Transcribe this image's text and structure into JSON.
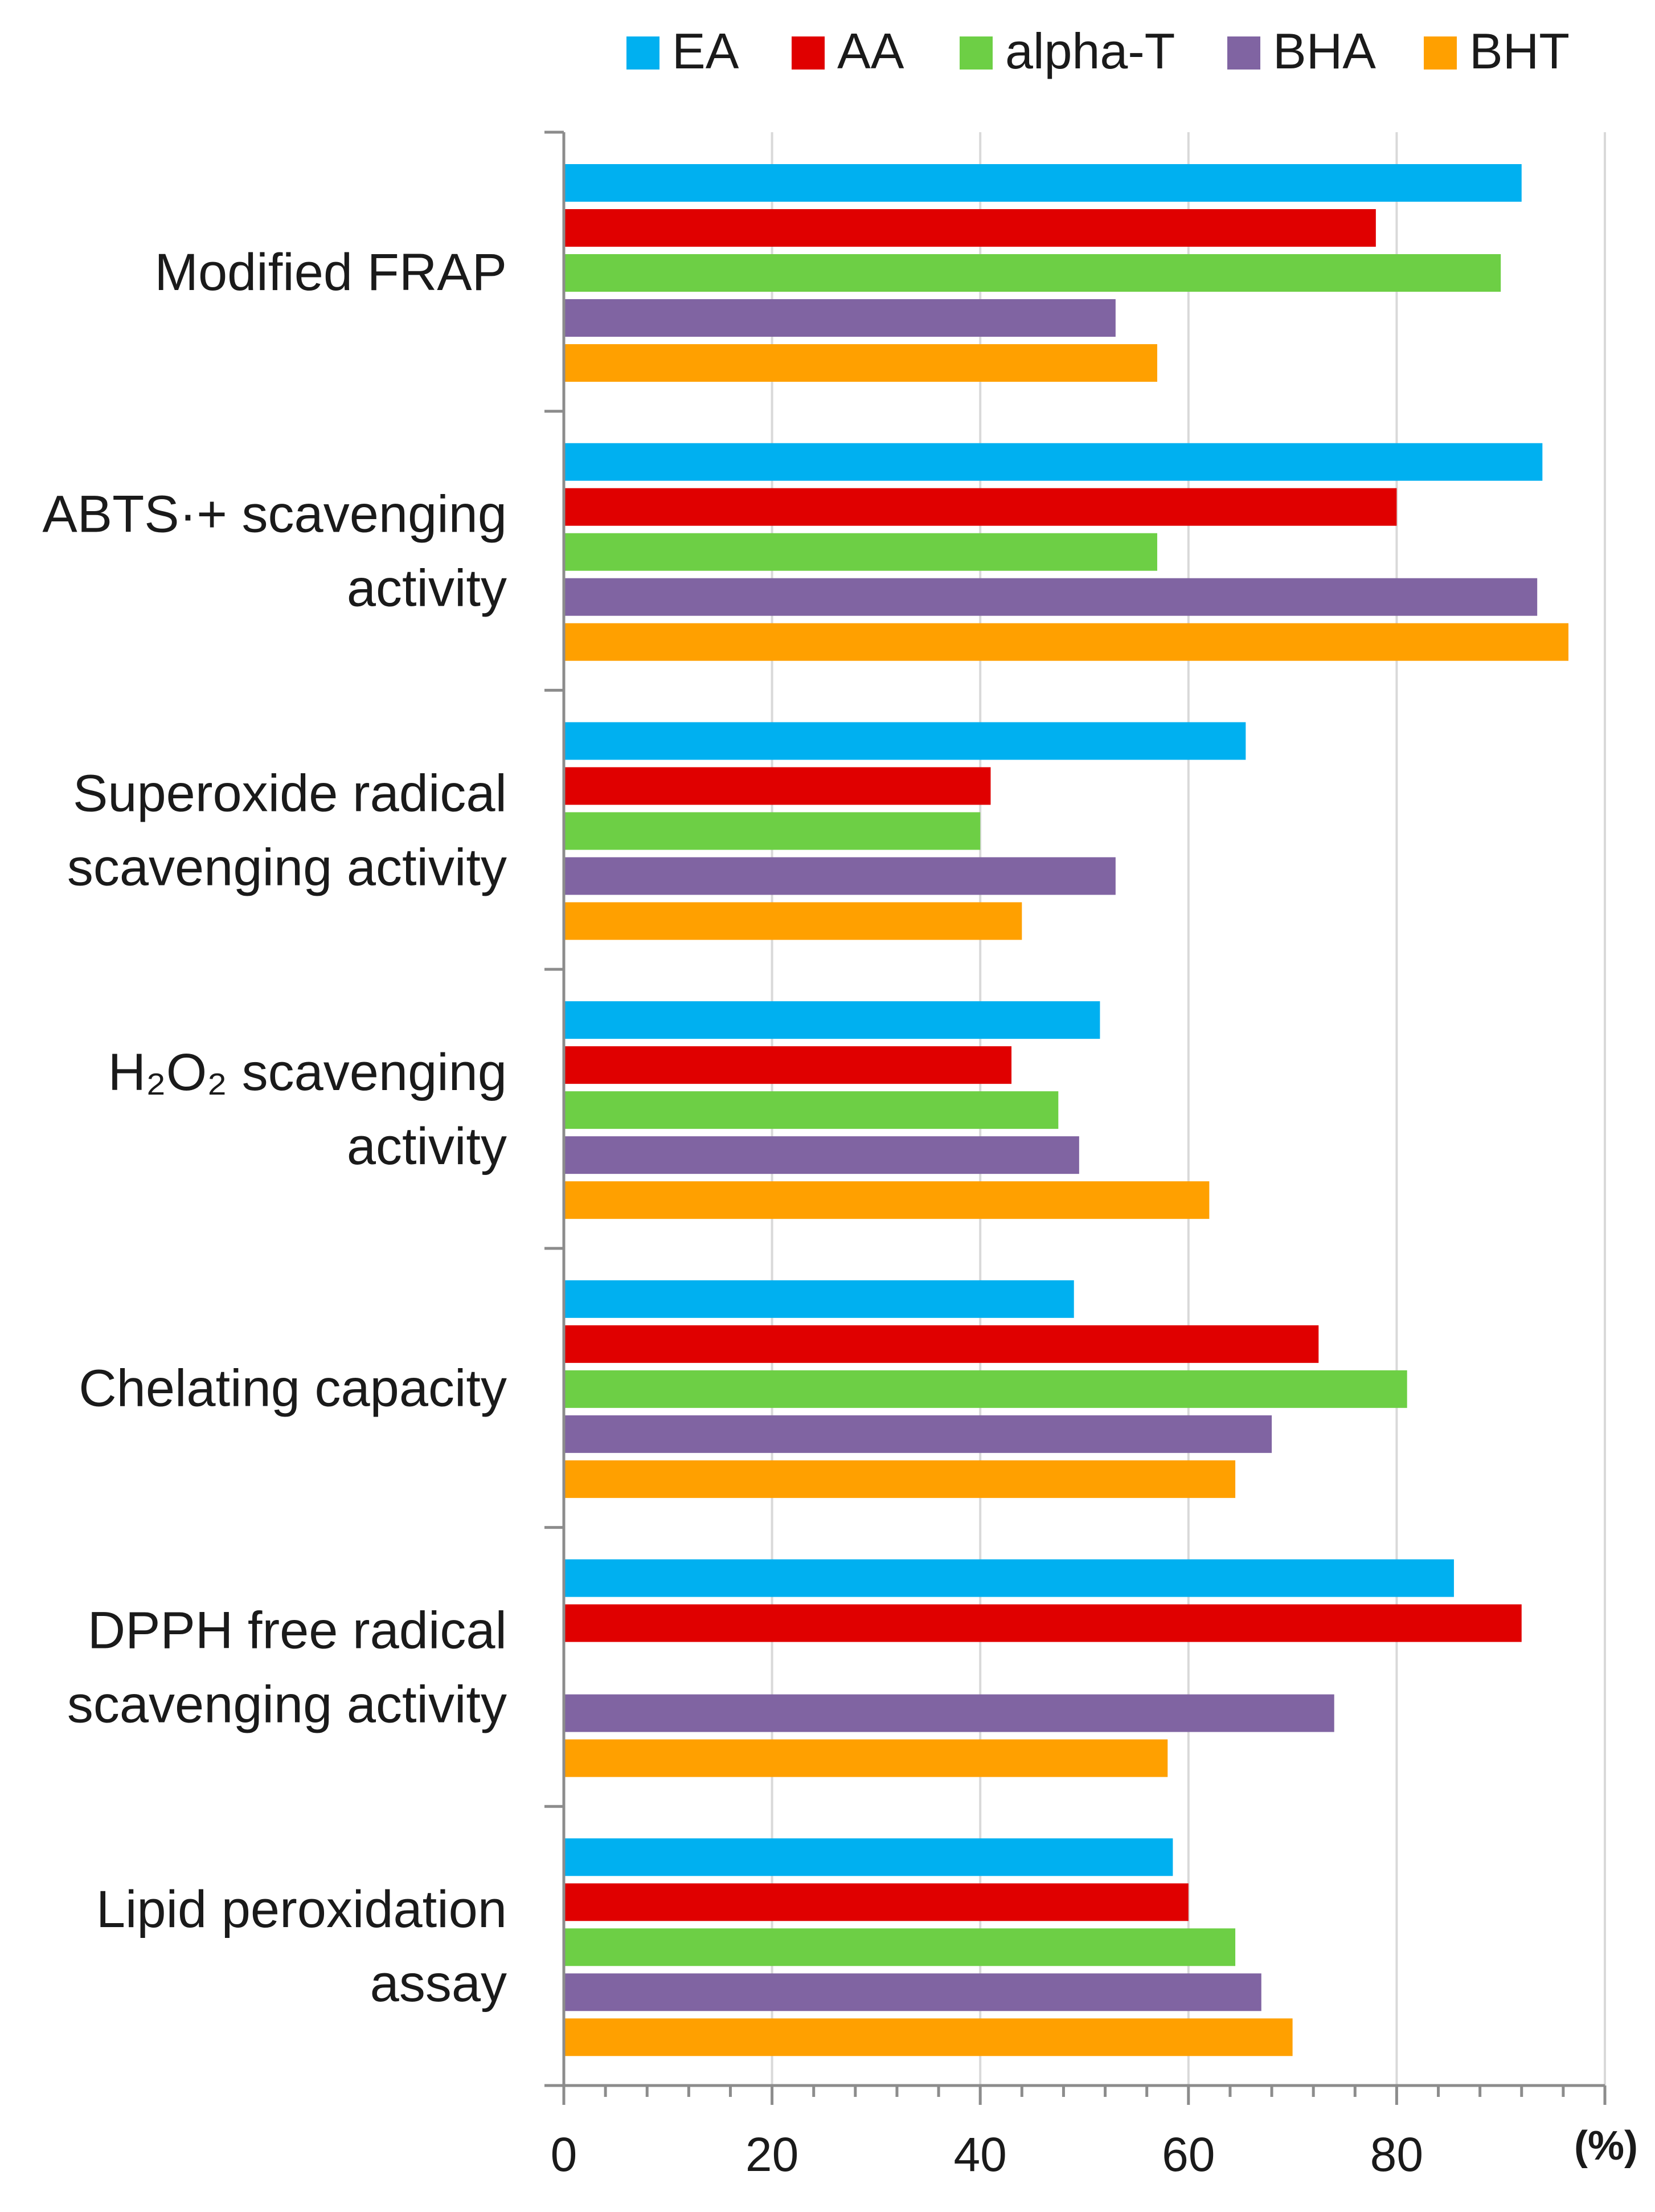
{
  "chart_data": {
    "type": "bar",
    "orientation": "horizontal",
    "title": "",
    "xlabel": "(%)",
    "ylabel": "",
    "xlim": [
      0,
      100
    ],
    "xticks": [
      "0",
      "20",
      "40",
      "60",
      "80"
    ],
    "grid": true,
    "legend_position": "top",
    "categories": [
      [
        "Modified FRAP"
      ],
      [
        "ABTS·+ scavenging",
        "activity"
      ],
      [
        "Superoxide radical",
        "scavenging activity"
      ],
      [
        "H₂O₂ scavenging",
        "activity"
      ],
      [
        "Chelating capacity"
      ],
      [
        "DPPH free radical",
        "scavenging activity"
      ],
      [
        "Lipid peroxidation",
        "assay"
      ]
    ],
    "series": [
      {
        "name": "EA",
        "color": "#00b0f0",
        "values": [
          92,
          94,
          65.5,
          51.5,
          49,
          85.5,
          58.5
        ]
      },
      {
        "name": "AA",
        "color": "#e00000",
        "values": [
          78,
          80,
          41,
          43,
          72.5,
          92,
          60
        ]
      },
      {
        "name": "alpha-T",
        "color": "#6dcf45",
        "values": [
          90,
          57,
          40,
          47.5,
          81,
          null,
          64.5
        ]
      },
      {
        "name": "BHA",
        "color": "#8064a2",
        "values": [
          53,
          93.5,
          53,
          49.5,
          68,
          74,
          67
        ]
      },
      {
        "name": "BHT",
        "color": "#ffa000",
        "values": [
          57,
          96.5,
          44,
          62,
          64.5,
          58,
          70
        ]
      }
    ]
  }
}
